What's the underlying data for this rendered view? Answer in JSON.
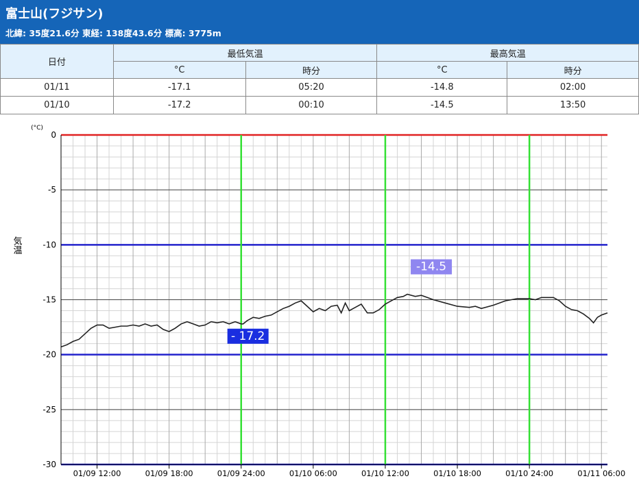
{
  "header": {
    "title": "富士山(フジサン)",
    "subtitle": "北緯: 35度21.6分 東経: 138度43.6分 標高: 3775m"
  },
  "table": {
    "col_date": "日付",
    "group_min": "最低気温",
    "group_max": "最高気温",
    "unit_c": "°C",
    "unit_time": "時分",
    "rows": [
      {
        "date": "01/11",
        "min_c": "-17.1",
        "min_time": "05:20",
        "max_c": "-14.8",
        "max_time": "02:00"
      },
      {
        "date": "01/10",
        "min_c": "-17.2",
        "min_time": "00:10",
        "max_c": "-14.5",
        "max_time": "13:50"
      }
    ]
  },
  "chart_data": {
    "type": "line",
    "ylabel": "気温",
    "yunit": "(°C)",
    "ylim": [
      -30,
      0
    ],
    "yticks": [
      0,
      -5,
      -10,
      -15,
      -20,
      -25,
      -30
    ],
    "xlim": [
      "01/09 09:00",
      "01/11 06:30"
    ],
    "xticks": [
      "01/09 12:00",
      "01/09 18:00",
      "01/09 24:00",
      "01/10 06:00",
      "01/10 12:00",
      "01/10 18:00",
      "01/10 24:00",
      "01/11 06:00"
    ],
    "grid": true,
    "reference_lines": [
      {
        "y": 0,
        "color": "#e02020"
      },
      {
        "y": -10,
        "color": "#2222cc"
      },
      {
        "y": -20,
        "color": "#2222cc"
      },
      {
        "y": -30,
        "color": "#2222cc"
      }
    ],
    "day_markers": [
      "01/09 24:00",
      "01/10 12:00",
      "01/10 24:00"
    ],
    "annotations": [
      {
        "text": "- 17.2",
        "x": "01/10 00:10",
        "y": -17.2,
        "color": "#1a2ee0"
      },
      {
        "text": "-14.5",
        "x": "01/10 13:50",
        "y": -14.5,
        "color": "#8f86f0"
      }
    ],
    "series": [
      {
        "color": "#222222",
        "points": [
          [
            "01/09 09:00",
            -19.3
          ],
          [
            "01/09 09:30",
            -19.1
          ],
          [
            "01/09 10:00",
            -18.8
          ],
          [
            "01/09 10:30",
            -18.6
          ],
          [
            "01/09 11:00",
            -18.1
          ],
          [
            "01/09 11:30",
            -17.6
          ],
          [
            "01/09 12:00",
            -17.3
          ],
          [
            "01/09 12:30",
            -17.3
          ],
          [
            "01/09 13:00",
            -17.6
          ],
          [
            "01/09 13:30",
            -17.5
          ],
          [
            "01/09 14:00",
            -17.4
          ],
          [
            "01/09 14:30",
            -17.4
          ],
          [
            "01/09 15:00",
            -17.3
          ],
          [
            "01/09 15:30",
            -17.4
          ],
          [
            "01/09 16:00",
            -17.2
          ],
          [
            "01/09 16:30",
            -17.4
          ],
          [
            "01/09 17:00",
            -17.3
          ],
          [
            "01/09 17:30",
            -17.7
          ],
          [
            "01/09 18:00",
            -17.9
          ],
          [
            "01/09 18:30",
            -17.6
          ],
          [
            "01/09 19:00",
            -17.2
          ],
          [
            "01/09 19:30",
            -17.0
          ],
          [
            "01/09 20:00",
            -17.2
          ],
          [
            "01/09 20:30",
            -17.4
          ],
          [
            "01/09 21:00",
            -17.3
          ],
          [
            "01/09 21:30",
            -17.0
          ],
          [
            "01/09 22:00",
            -17.1
          ],
          [
            "01/09 22:30",
            -17.0
          ],
          [
            "01/09 23:00",
            -17.2
          ],
          [
            "01/09 23:30",
            -17.0
          ],
          [
            "01/10 00:00",
            -17.2
          ],
          [
            "01/10 00:10",
            -17.2
          ],
          [
            "01/10 00:30",
            -16.9
          ],
          [
            "01/10 01:00",
            -16.6
          ],
          [
            "01/10 01:30",
            -16.7
          ],
          [
            "01/10 02:00",
            -16.5
          ],
          [
            "01/10 02:30",
            -16.4
          ],
          [
            "01/10 03:00",
            -16.1
          ],
          [
            "01/10 03:30",
            -15.8
          ],
          [
            "01/10 04:00",
            -15.6
          ],
          [
            "01/10 04:30",
            -15.3
          ],
          [
            "01/10 05:00",
            -15.1
          ],
          [
            "01/10 05:30",
            -15.6
          ],
          [
            "01/10 06:00",
            -16.1
          ],
          [
            "01/10 06:30",
            -15.8
          ],
          [
            "01/10 07:00",
            -16.0
          ],
          [
            "01/10 07:30",
            -15.6
          ],
          [
            "01/10 08:00",
            -15.5
          ],
          [
            "01/10 08:20",
            -16.2
          ],
          [
            "01/10 08:40",
            -15.3
          ],
          [
            "01/10 09:00",
            -16.0
          ],
          [
            "01/10 09:30",
            -15.7
          ],
          [
            "01/10 10:00",
            -15.4
          ],
          [
            "01/10 10:30",
            -16.2
          ],
          [
            "01/10 11:00",
            -16.2
          ],
          [
            "01/10 11:30",
            -15.9
          ],
          [
            "01/10 12:00",
            -15.4
          ],
          [
            "01/10 12:30",
            -15.1
          ],
          [
            "01/10 13:00",
            -14.8
          ],
          [
            "01/10 13:30",
            -14.7
          ],
          [
            "01/10 13:50",
            -14.5
          ],
          [
            "01/10 14:30",
            -14.7
          ],
          [
            "01/10 15:00",
            -14.6
          ],
          [
            "01/10 15:30",
            -14.8
          ],
          [
            "01/10 16:00",
            -15.0
          ],
          [
            "01/10 17:00",
            -15.3
          ],
          [
            "01/10 18:00",
            -15.6
          ],
          [
            "01/10 19:00",
            -15.7
          ],
          [
            "01/10 19:30",
            -15.6
          ],
          [
            "01/10 20:00",
            -15.8
          ],
          [
            "01/10 21:00",
            -15.5
          ],
          [
            "01/10 22:00",
            -15.1
          ],
          [
            "01/10 23:00",
            -14.9
          ],
          [
            "01/11 00:00",
            -14.9
          ],
          [
            "01/11 00:30",
            -15.0
          ],
          [
            "01/11 01:00",
            -14.8
          ],
          [
            "01/11 02:00",
            -14.8
          ],
          [
            "01/11 02:30",
            -15.1
          ],
          [
            "01/11 03:00",
            -15.6
          ],
          [
            "01/11 03:30",
            -15.9
          ],
          [
            "01/11 04:00",
            -16.0
          ],
          [
            "01/11 04:30",
            -16.3
          ],
          [
            "01/11 05:00",
            -16.7
          ],
          [
            "01/11 05:20",
            -17.1
          ],
          [
            "01/11 05:40",
            -16.6
          ],
          [
            "01/11 06:00",
            -16.4
          ],
          [
            "01/11 06:30",
            -16.2
          ]
        ]
      }
    ]
  }
}
